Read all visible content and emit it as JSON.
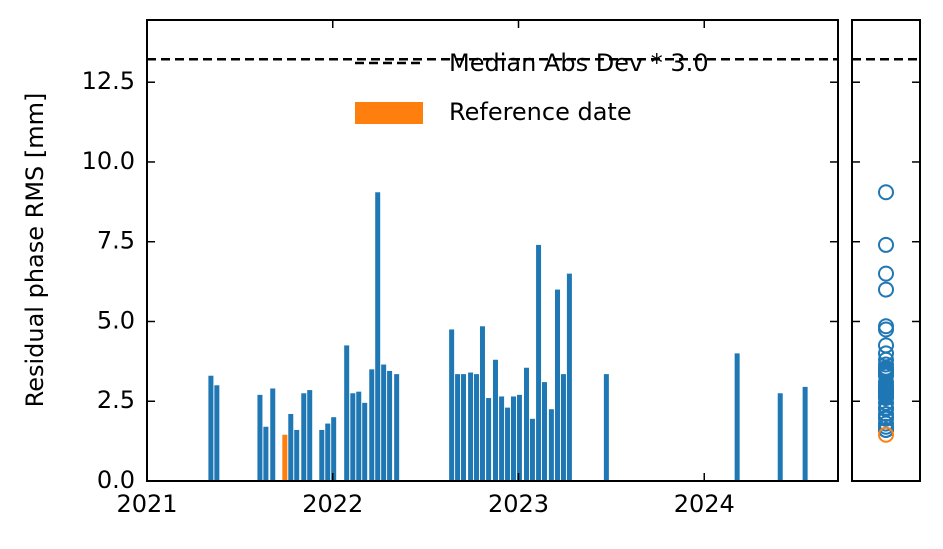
{
  "chart_data": {
    "type": "bar",
    "ylabel": "Residual phase RMS [mm]",
    "xlim": [
      2021.0,
      2024.72
    ],
    "xticks": [
      2021,
      2022,
      2023,
      2024
    ],
    "ylim": [
      0,
      14.45
    ],
    "yticks": [
      {
        "value": 0,
        "label": "0.0"
      },
      {
        "value": 2.5,
        "label": "2.5"
      },
      {
        "value": 5,
        "label": "5.0"
      },
      {
        "value": 7.5,
        "label": "7.5"
      },
      {
        "value": 10,
        "label": "10.0"
      },
      {
        "value": 12.5,
        "label": "12.5"
      }
    ],
    "hline": {
      "value": 13.22,
      "label": "Median Abs Dev * 3.0"
    },
    "series": [
      {
        "color": "#1f77b4",
        "x": [
          2021.344,
          2021.376,
          2021.608,
          2021.64,
          2021.677,
          2021.774,
          2021.806,
          2021.844,
          2021.876,
          2021.941,
          2021.973,
          2022.005,
          2022.075,
          2022.108,
          2022.14,
          2022.172,
          2022.21,
          2022.242,
          2022.274,
          2022.306,
          2022.344,
          2022.64,
          2022.672,
          2022.704,
          2022.742,
          2022.774,
          2022.806,
          2022.839,
          2022.876,
          2022.909,
          2022.941,
          2022.973,
          2023.005,
          2023.043,
          2023.075,
          2023.108,
          2023.14,
          2023.177,
          2023.21,
          2023.242,
          2023.274,
          2023.473,
          2024.177,
          2024.409,
          2024.543
        ],
        "values": [
          3.3,
          3.0,
          2.7,
          1.7,
          2.9,
          2.1,
          1.6,
          2.75,
          2.85,
          1.6,
          1.8,
          2.0,
          4.25,
          2.75,
          2.8,
          2.45,
          3.5,
          9.05,
          3.65,
          3.45,
          3.35,
          4.75,
          3.35,
          3.35,
          3.4,
          3.35,
          4.85,
          2.6,
          3.8,
          2.65,
          2.3,
          2.65,
          2.7,
          3.55,
          1.95,
          7.4,
          3.1,
          2.25,
          6.0,
          3.35,
          6.5,
          3.35,
          4.0,
          2.75,
          2.95
        ]
      },
      {
        "name": "Reference date",
        "color": "#ff7f0e",
        "x": [
          2021.742
        ],
        "values": [
          1.45
        ]
      }
    ]
  }
}
